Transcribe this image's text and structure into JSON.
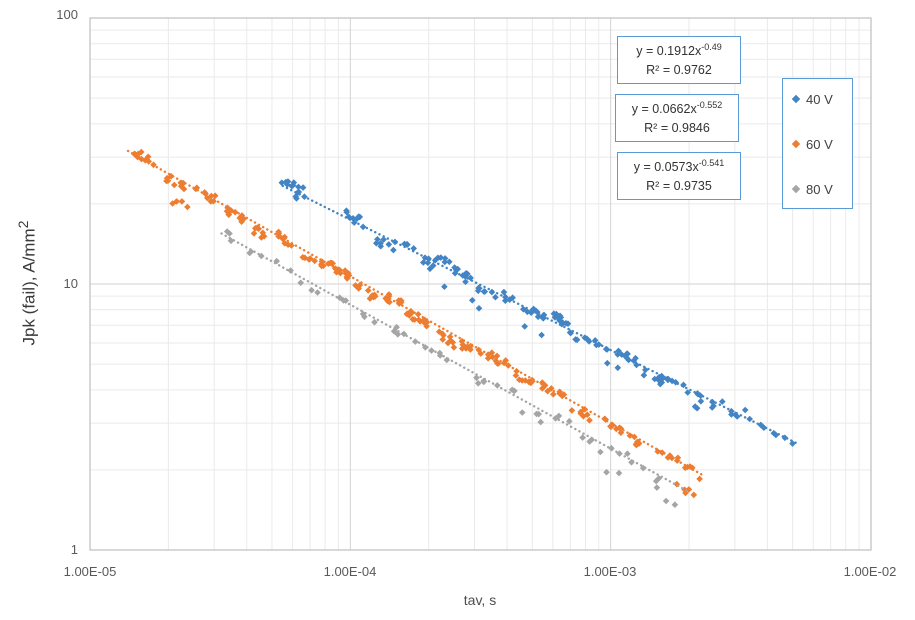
{
  "chart_data": {
    "type": "scatter",
    "title": "",
    "xlabel": "tav, s",
    "ylabel": "Jpk (fail),  A/mm²",
    "ylabel_base": "Jpk (fail),  A/mm",
    "ylabel_sup": "2",
    "x_scale": "log",
    "y_scale": "log",
    "xlim": [
      1e-05,
      0.01
    ],
    "ylim": [
      1,
      100
    ],
    "x_ticks": [
      "1.00E-05",
      "1.00E-04",
      "1.00E-03",
      "1.00E-02"
    ],
    "y_ticks": [
      "1",
      "10",
      "100"
    ],
    "grid": true,
    "legend_position": "right",
    "cluster_format": [
      "t_seconds",
      "offset_factor_vs_trend",
      "n_points"
    ],
    "series": [
      {
        "name": "40 V",
        "color": "#4284C4",
        "marker": "diamond",
        "trendline": {
          "equation": "y = 0.1912x^-0.49",
          "a": 0.1912,
          "exponent": -0.49,
          "r2": 0.9762,
          "style": "dotted",
          "t_range": [
            5.5e-05,
            0.0052
          ]
        },
        "clusters": [
          [
            6e-05,
            1.06,
            9
          ],
          [
            6.6e-05,
            0.98,
            5
          ],
          [
            0.000105,
            1.03,
            9
          ],
          [
            0.000135,
            0.94,
            7
          ],
          [
            0.00016,
            1.0,
            6
          ],
          [
            0.00019,
            0.96,
            5
          ],
          [
            0.00022,
            1.04,
            7
          ],
          [
            0.00027,
            1.0,
            13
          ],
          [
            0.00033,
            0.96,
            7
          ],
          [
            0.00042,
            1.01,
            7
          ],
          [
            0.00052,
            0.99,
            11
          ],
          [
            0.00063,
            1.04,
            11
          ],
          [
            0.00076,
            0.96,
            7
          ],
          [
            0.00092,
            0.98,
            5
          ],
          [
            0.00115,
            1.01,
            11
          ],
          [
            0.00145,
            0.96,
            9
          ],
          [
            0.0018,
            1.0,
            7
          ],
          [
            0.0023,
            0.98,
            7
          ],
          [
            0.0029,
            1.0,
            5
          ],
          [
            0.0036,
            1.03,
            4
          ],
          [
            0.0046,
            0.98,
            4
          ],
          [
            0.00022,
            0.82,
            1
          ],
          [
            0.00032,
            0.84,
            2
          ],
          [
            0.0005,
            0.86,
            2
          ],
          [
            0.001,
            0.86,
            2
          ],
          [
            0.002,
            0.87,
            2
          ]
        ]
      },
      {
        "name": "60 V",
        "color": "#ED7D31",
        "marker": "diamond",
        "trendline": {
          "equation": "y = 0.0662x^-0.552",
          "a": 0.0662,
          "exponent": -0.552,
          "r2": 0.9846,
          "style": "dotted",
          "t_range": [
            1.4e-05,
            0.0023
          ]
        },
        "clusters": [
          [
            1.6e-05,
            1.02,
            11
          ],
          [
            2.1e-05,
            0.96,
            9
          ],
          [
            2.2e-05,
            0.82,
            4
          ],
          [
            2.8e-05,
            1.0,
            9
          ],
          [
            3.6e-05,
            0.96,
            11
          ],
          [
            4.6e-05,
            0.93,
            7
          ],
          [
            5.8e-05,
            1.0,
            11
          ],
          [
            7.2e-05,
            0.96,
            9
          ],
          [
            9e-05,
            1.0,
            15
          ],
          [
            0.000115,
            0.94,
            9
          ],
          [
            0.000145,
            1.0,
            11
          ],
          [
            0.00018,
            0.97,
            15
          ],
          [
            0.00023,
            0.93,
            9
          ],
          [
            0.00029,
            0.96,
            11
          ],
          [
            0.00037,
            1.0,
            11
          ],
          [
            0.00047,
            0.96,
            9
          ],
          [
            0.0006,
            1.0,
            11
          ],
          [
            0.00077,
            0.96,
            7
          ],
          [
            0.001,
            1.0,
            9
          ],
          [
            0.0013,
            0.96,
            7
          ],
          [
            0.00165,
            1.0,
            7
          ],
          [
            0.00205,
            0.98,
            5
          ],
          [
            0.0019,
            0.8,
            3
          ],
          [
            0.0021,
            0.82,
            2
          ]
        ]
      },
      {
        "name": "80 V",
        "color": "#A5A5A5",
        "marker": "diamond",
        "trendline": {
          "equation": "y = 0.0573x^-0.541",
          "a": 0.0573,
          "exponent": -0.541,
          "r2": 0.9735,
          "style": "dotted",
          "t_range": [
            3.2e-05,
            0.002
          ]
        },
        "clusters": [
          [
            3.4e-05,
            1.02,
            3
          ],
          [
            4.3e-05,
            0.96,
            3
          ],
          [
            5.5e-05,
            1.0,
            2
          ],
          [
            7e-05,
            0.97,
            3
          ],
          [
            9e-05,
            1.0,
            3
          ],
          [
            0.000115,
            0.95,
            3
          ],
          [
            0.00015,
            1.0,
            4
          ],
          [
            0.00019,
            0.96,
            3
          ],
          [
            0.00024,
            1.0,
            3
          ],
          [
            0.00031,
            0.95,
            4
          ],
          [
            0.0004,
            1.0,
            3
          ],
          [
            0.0005,
            0.93,
            4
          ],
          [
            0.00065,
            1.0,
            3
          ],
          [
            0.00085,
            0.96,
            4
          ],
          [
            0.0011,
            1.0,
            4
          ],
          [
            0.0014,
            0.96,
            3
          ],
          [
            0.00105,
            0.82,
            2
          ],
          [
            0.0016,
            0.86,
            3
          ]
        ]
      }
    ]
  },
  "annotations": {
    "equations": [
      {
        "base": "y = 0.1912x",
        "exp": "-0.49",
        "r2": "R² = 0.9762"
      },
      {
        "base": "y = 0.0662x",
        "exp": "-0.552",
        "r2": "R² = 0.9846"
      },
      {
        "base": "y = 0.0573x",
        "exp": "-0.541",
        "r2": "R² = 0.9735"
      }
    ]
  },
  "legend": {
    "items": [
      {
        "label": "40 V",
        "color": "#4284C4"
      },
      {
        "label": "60 V",
        "color": "#ED7D31"
      },
      {
        "label": "80 V",
        "color": "#A5A5A5"
      }
    ]
  },
  "colors": {
    "grid_minor": "#EAEAEA",
    "grid_major": "#D2D2D2",
    "plot_border": "#BFBFBF",
    "box_border": "#5B9BD5",
    "tick_text": "#595959"
  }
}
